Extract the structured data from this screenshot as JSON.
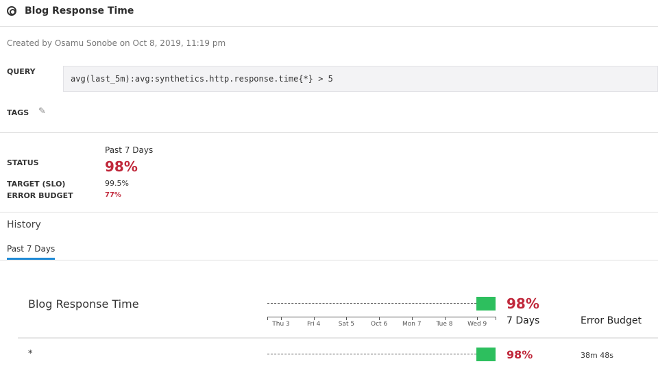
{
  "header": {
    "title": "Blog Response Time",
    "icon": "monitor-logo-icon"
  },
  "created": "Created by Osamu Sonobe on Oct 8, 2019, 11:19 pm",
  "query": {
    "label": "QUERY",
    "value": "avg(last_5m):avg:synthetics.http.response.time{*} > 5"
  },
  "tags": {
    "label": "TAGS",
    "icon": "pencil-icon"
  },
  "status": {
    "period": "Past 7 Days",
    "status_label": "STATUS",
    "status_value": "98%",
    "target_label": "TARGET (SLO)",
    "target_value": "99.5%",
    "budget_label": "ERROR BUDGET",
    "budget_value": "77%"
  },
  "history": {
    "title": "History",
    "tabs": [
      {
        "label": "Past 7 Days",
        "active": true
      }
    ]
  },
  "colors": {
    "accent": "#1e8ad6",
    "red": "#c0283b",
    "green": "#2dbf5e"
  },
  "chart": {
    "name": "Blog Response Time",
    "axis_ticks": [
      "Thu 3",
      "Fri 4",
      "Sat 5",
      "Oct 6",
      "Mon 7",
      "Tue 8",
      "Wed 9"
    ],
    "value": "98%",
    "col_7days": "7 Days",
    "col_budget": "Error Budget",
    "rows": [
      {
        "group": "*",
        "value": "98%",
        "budget": "38m 48s"
      }
    ]
  }
}
